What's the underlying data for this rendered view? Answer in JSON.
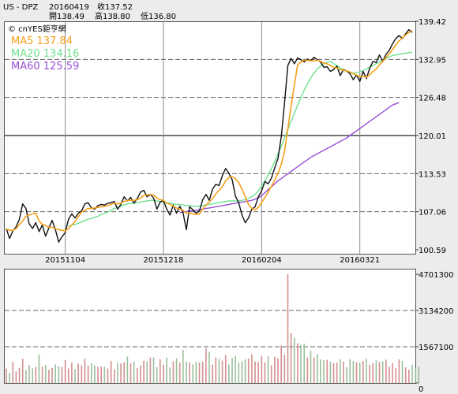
{
  "header": {
    "symbol": "US - DPZ",
    "date": "20160419",
    "close_label": "收137.52",
    "open_label": "開138.49",
    "high_label": "高138.80",
    "low_label": "低136.80",
    "source": "© cnYES鉅亨網"
  },
  "colors": {
    "price": "#111111",
    "ma5": "#f5a01a",
    "ma20": "#6ee08e",
    "ma60": "#9a4fd6",
    "volume_bar": "#d48e8e",
    "volume_bar_alt": "#9abf9a"
  },
  "chart_data": [
    {
      "type": "line",
      "legend": [
        {
          "name": "MA5",
          "value": "137.84"
        },
        {
          "name": "MA20",
          "value": "134.16"
        },
        {
          "name": "MA60",
          "value": "125.59"
        }
      ],
      "y_ticks": [
        "139.42",
        "132.95",
        "126.48",
        "120.01",
        "113.53",
        "107.06",
        "100.59"
      ],
      "ylim": [
        100.59,
        139.42
      ],
      "x_ticks": [
        {
          "label": "20151104",
          "index": 18
        },
        {
          "label": "20151218",
          "index": 48
        },
        {
          "label": "20160204",
          "index": 78
        },
        {
          "label": "20160321",
          "index": 108
        }
      ],
      "series": [
        {
          "name": "Price",
          "values": [
            104.2,
            102.5,
            103.8,
            104.5,
            105.8,
            108.4,
            107.6,
            105.0,
            104.2,
            105.2,
            103.7,
            104.8,
            102.9,
            104.3,
            105.6,
            104.0,
            101.9,
            102.8,
            103.5,
            105.8,
            106.7,
            106.0,
            106.8,
            107.2,
            108.4,
            108.6,
            107.7,
            107.5,
            108.1,
            108.3,
            108.2,
            108.5,
            108.6,
            108.8,
            107.5,
            108.3,
            109.6,
            108.9,
            109.5,
            108.5,
            109.3,
            110.4,
            110.7,
            109.6,
            110.0,
            109.4,
            107.5,
            108.7,
            109.0,
            107.5,
            106.5,
            108.2,
            106.8,
            108.0,
            106.9,
            104.0,
            107.9,
            107.4,
            106.8,
            107.2,
            109.1,
            110.0,
            109.0,
            110.9,
            111.7,
            111.5,
            113.2,
            114.4,
            113.6,
            112.5,
            109.7,
            108.6,
            106.5,
            105.2,
            106.0,
            107.5,
            107.9,
            109.6,
            110.6,
            112.2,
            111.8,
            112.8,
            114.5,
            116.1,
            119.8,
            125.5,
            131.9,
            133.1,
            132.2,
            133.2,
            132.9,
            132.5,
            133.0,
            132.7,
            133.3,
            132.9,
            132.5,
            131.6,
            131.7,
            130.9,
            131.2,
            131.8,
            130.2,
            131.2,
            131.0,
            130.5,
            129.5,
            130.3,
            129.2,
            130.9,
            129.7,
            131.4,
            132.6,
            132.4,
            133.7,
            132.6,
            133.8,
            134.5,
            135.6,
            136.5,
            137.0,
            136.5,
            137.3,
            138.0,
            137.52
          ]
        },
        {
          "name": "MA5",
          "values": [
            104.1,
            103.9,
            103.9,
            104.2,
            104.9,
            105.5,
            106.3,
            106.5,
            106.7,
            106.8,
            105.5,
            104.9,
            104.7,
            104.4,
            104.4,
            104.2,
            104.0,
            103.9,
            103.8,
            104.2,
            104.8,
            105.4,
            106.2,
            107.0,
            107.3,
            107.6,
            107.6,
            107.7,
            107.8,
            107.9,
            108.0,
            108.1,
            108.3,
            108.5,
            108.4,
            108.5,
            108.8,
            109.0,
            109.0,
            109.0,
            109.1,
            109.4,
            109.8,
            109.9,
            110.0,
            109.9,
            109.4,
            109.1,
            109.0,
            108.5,
            108.3,
            108.0,
            107.7,
            107.5,
            107.3,
            106.8,
            106.8,
            106.7,
            106.6,
            106.7,
            107.5,
            108.2,
            108.7,
            109.3,
            110.1,
            110.7,
            111.3,
            112.3,
            112.9,
            113.0,
            112.7,
            112.0,
            110.9,
            109.6,
            108.3,
            107.6,
            107.4,
            107.8,
            108.6,
            109.5,
            110.4,
            111.4,
            112.4,
            113.6,
            115.1,
            117.3,
            121.2,
            125.0,
            128.6,
            132.0,
            132.5,
            132.8,
            132.8,
            132.7,
            132.7,
            132.8,
            132.6,
            132.3,
            132.2,
            131.9,
            131.6,
            131.5,
            131.2,
            131.1,
            131.0,
            130.8,
            130.5,
            130.3,
            130.0,
            130.1,
            129.9,
            130.3,
            130.9,
            131.3,
            132.0,
            132.6,
            133.3,
            133.9,
            134.6,
            135.4,
            136.1,
            136.6,
            137.1,
            137.5,
            137.84
          ]
        },
        {
          "name": "MA20",
          "values": [
            null,
            null,
            null,
            null,
            null,
            null,
            null,
            null,
            null,
            null,
            null,
            null,
            null,
            null,
            null,
            null,
            null,
            null,
            null,
            104.6,
            104.8,
            104.9,
            105.1,
            105.3,
            105.6,
            105.8,
            105.9,
            106.1,
            106.3,
            106.6,
            106.8,
            107.0,
            107.3,
            107.6,
            107.8,
            108.0,
            108.2,
            108.4,
            108.5,
            108.5,
            108.6,
            108.7,
            108.8,
            108.9,
            109.0,
            109.0,
            108.9,
            108.8,
            108.7,
            108.6,
            108.5,
            108.4,
            108.3,
            108.3,
            108.2,
            108.1,
            108.1,
            108.0,
            108.0,
            108.0,
            108.1,
            108.2,
            108.3,
            108.4,
            108.5,
            108.6,
            108.7,
            108.8,
            108.9,
            108.9,
            108.9,
            108.9,
            109.0,
            109.1,
            109.3,
            109.6,
            110.0,
            110.6,
            111.4,
            112.3,
            113.3,
            114.4,
            115.6,
            116.9,
            118.2,
            119.6,
            121.0,
            122.4,
            123.8,
            125.2,
            126.5,
            127.7,
            128.8,
            129.8,
            130.6,
            131.3,
            131.8,
            132.2,
            132.4,
            132.6,
            132.2,
            131.9,
            131.5,
            131.2,
            130.9,
            130.7,
            130.6,
            130.7,
            130.8,
            131.1,
            131.3,
            131.6,
            131.9,
            132.2,
            132.5,
            132.8,
            133.1,
            133.4,
            133.6,
            133.7,
            133.8,
            133.9,
            134.0,
            134.1,
            134.16
          ]
        },
        {
          "name": "MA60",
          "values": [
            null,
            null,
            null,
            null,
            null,
            null,
            null,
            null,
            null,
            null,
            null,
            null,
            null,
            null,
            null,
            null,
            null,
            null,
            null,
            null,
            null,
            null,
            null,
            null,
            null,
            null,
            null,
            null,
            null,
            null,
            null,
            null,
            null,
            null,
            null,
            null,
            null,
            null,
            null,
            null,
            null,
            null,
            null,
            null,
            null,
            null,
            null,
            null,
            null,
            null,
            null,
            null,
            null,
            106.9,
            107.0,
            107.1,
            107.2,
            107.2,
            107.3,
            107.4,
            107.5,
            107.6,
            107.7,
            107.8,
            107.9,
            108.0,
            108.1,
            108.2,
            108.3,
            108.4,
            108.5,
            108.6,
            108.7,
            108.8,
            108.9,
            109.0,
            109.2,
            109.4,
            109.8,
            110.3,
            110.8,
            111.3,
            111.8,
            112.3,
            112.7,
            113.1,
            113.5,
            113.9,
            114.3,
            114.7,
            115.1,
            115.5,
            115.9,
            116.3,
            116.6,
            116.9,
            117.2,
            117.5,
            117.8,
            118.1,
            118.4,
            118.7,
            119.0,
            119.3,
            119.6,
            120.0,
            120.4,
            120.8,
            121.2,
            121.6,
            122.0,
            122.4,
            122.8,
            123.2,
            123.6,
            124.0,
            124.4,
            124.8,
            125.2,
            125.4,
            125.59
          ]
        }
      ]
    },
    {
      "type": "bar",
      "y_ticks": [
        "4701300",
        "3134200",
        "1567100",
        "0"
      ],
      "ylim": [
        0,
        4701300
      ],
      "values": [
        620000,
        430000,
        910000,
        500000,
        660000,
        1050000,
        540000,
        780000,
        630000,
        690000,
        1230000,
        700000,
        780000,
        570000,
        650000,
        800000,
        720000,
        700000,
        1000000,
        630000,
        880000,
        600000,
        830000,
        760000,
        1040000,
        750000,
        850000,
        760000,
        690000,
        710000,
        700000,
        630000,
        960000,
        590000,
        860000,
        840000,
        900000,
        1140000,
        850000,
        920000,
        650000,
        760000,
        960000,
        930000,
        1100000,
        1100000,
        680000,
        1020000,
        790000,
        1100000,
        670000,
        930000,
        1060000,
        880000,
        1430000,
        930000,
        890000,
        810000,
        910000,
        880000,
        920000,
        1500000,
        1350000,
        790000,
        1100000,
        1050000,
        970000,
        1200000,
        800000,
        1080000,
        1170000,
        880000,
        940000,
        1020000,
        1050000,
        1240000,
        930000,
        900000,
        1180000,
        890000,
        1150000,
        760000,
        1130000,
        1060000,
        1620000,
        1220000,
        4701000,
        2150000,
        1950000,
        1720000,
        1650000,
        1700000,
        1100000,
        1400000,
        1100000,
        1250000,
        1020000,
        980000,
        1000000,
        920000,
        860000,
        880000,
        1020000,
        920000,
        680000,
        1030000,
        960000,
        900000,
        880000,
        950000,
        1050000,
        780000,
        860000,
        980000,
        910000,
        940000,
        1010000,
        710000,
        860000,
        650000,
        1020000,
        950000,
        670000,
        580000,
        790000,
        650000,
        700000
      ]
    }
  ]
}
